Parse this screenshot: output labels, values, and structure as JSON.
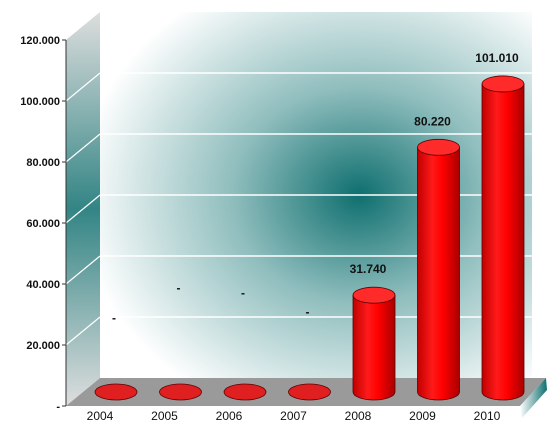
{
  "chart_data": {
    "type": "bar",
    "style": "3d-cylinder",
    "categories": [
      "2004",
      "2005",
      "2006",
      "2007",
      "2008",
      "2009",
      "2010"
    ],
    "values": [
      0,
      0,
      0,
      0,
      31740,
      80220,
      101010
    ],
    "data_labels": [
      "-",
      "-",
      "-",
      "-",
      "31.740",
      "80.220",
      "101.010"
    ],
    "y_ticks": [
      {
        "value": 0,
        "label": "-"
      },
      {
        "value": 20000,
        "label": "20.000"
      },
      {
        "value": 40000,
        "label": "40.000"
      },
      {
        "value": 60000,
        "label": "60.000"
      },
      {
        "value": 80000,
        "label": "80.000"
      },
      {
        "value": 100000,
        "label": "100.000"
      },
      {
        "value": 120000,
        "label": "120.000"
      }
    ],
    "ylim": [
      0,
      120000
    ],
    "grid": true,
    "title": "",
    "xlabel": "",
    "ylabel": "",
    "colors": {
      "bar": "#ff0000",
      "bar_dark": "#b00000",
      "bar_top": "#ff4a4a",
      "wall_center": "#0f6f6f",
      "wall_edge": "#ffffff",
      "floor": "#9a9a9a",
      "floor_front": "#0f6f6f"
    }
  }
}
